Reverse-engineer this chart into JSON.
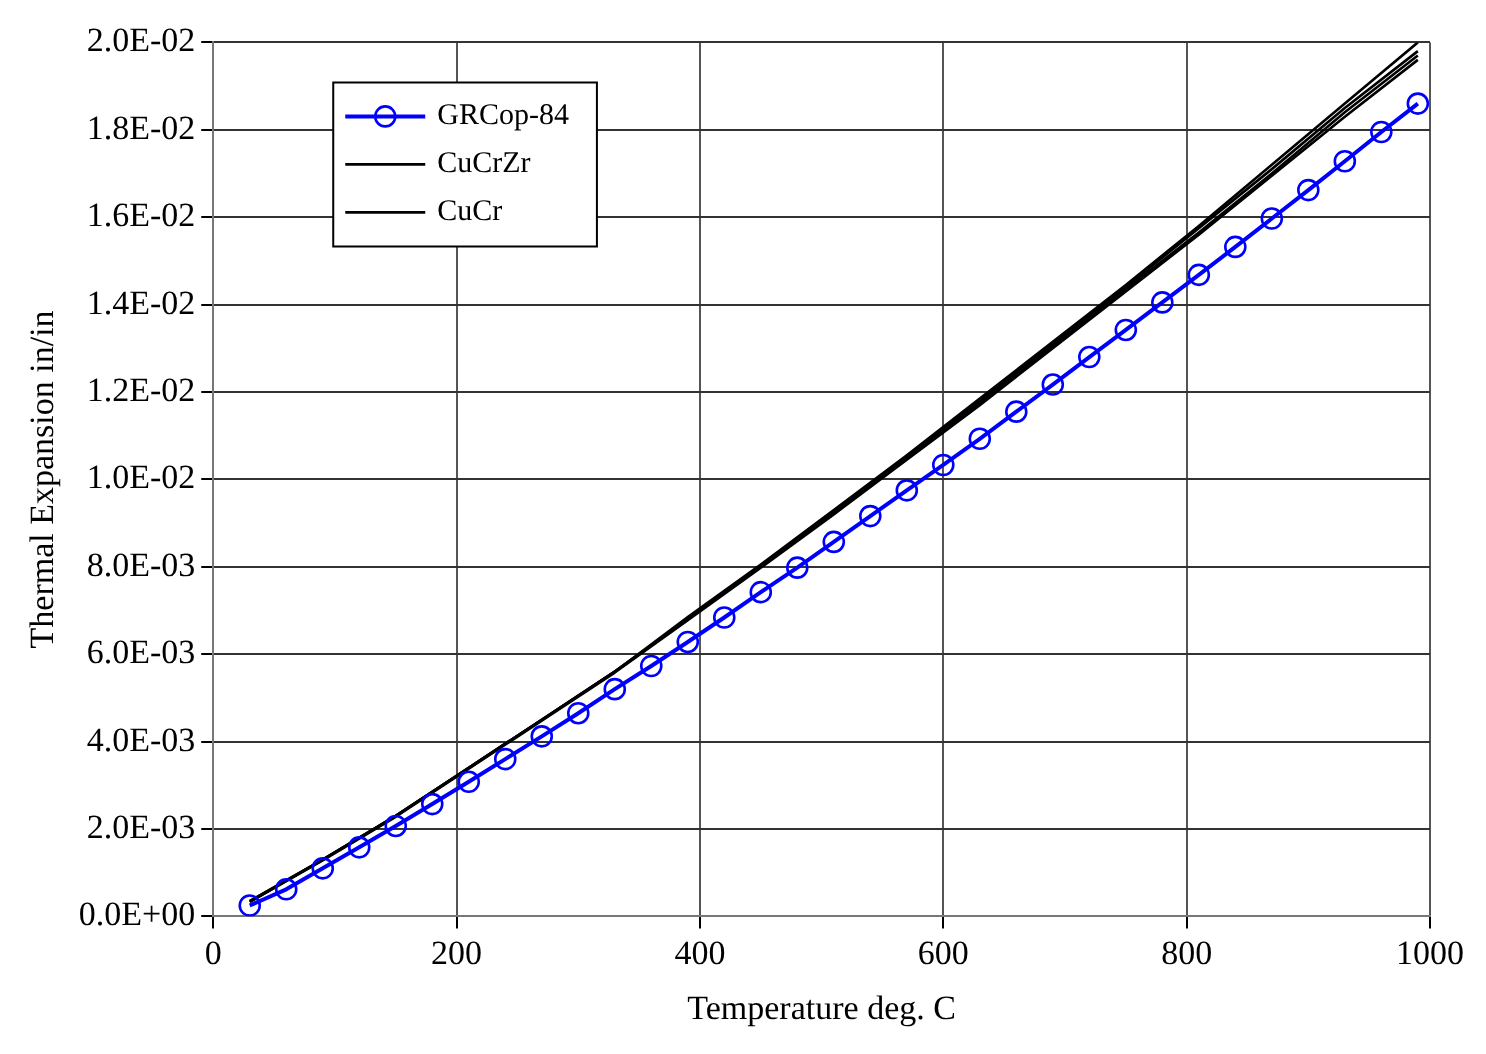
{
  "chart_data": {
    "type": "line",
    "xlabel": "Temperature deg. C",
    "ylabel": "Thermal Expansion in/in",
    "xlim": [
      0,
      1000
    ],
    "xticks": [
      0,
      200,
      400,
      600,
      800,
      1000
    ],
    "ylim": [
      0,
      0.02
    ],
    "yticks": [
      {
        "value": 0,
        "label": "0.0E+00"
      },
      {
        "value": 0.002,
        "label": "2.0E-03"
      },
      {
        "value": 0.004,
        "label": "4.0E-03"
      },
      {
        "value": 0.006,
        "label": "6.0E-03"
      },
      {
        "value": 0.008,
        "label": "8.0E-03"
      },
      {
        "value": 0.01,
        "label": "1.0E-02"
      },
      {
        "value": 0.012,
        "label": "1.2E-02"
      },
      {
        "value": 0.014,
        "label": "1.4E-02"
      },
      {
        "value": 0.016,
        "label": "1.6E-02"
      },
      {
        "value": 0.018,
        "label": "1.8E-02"
      },
      {
        "value": 0.02,
        "label": "2.0E-02"
      }
    ],
    "grid": true,
    "legend": "top left",
    "line_style": "solid",
    "series": [
      {
        "name": "GRCop-84",
        "color": "#0000ff",
        "marker": "circle",
        "x": [
          30,
          60,
          90,
          120,
          150,
          180,
          210,
          240,
          270,
          300,
          330,
          360,
          390,
          420,
          450,
          480,
          510,
          540,
          570,
          600,
          630,
          660,
          690,
          720,
          750,
          780,
          810,
          840,
          870,
          900,
          930,
          960,
          990
        ],
        "values": [
          0.00025,
          0.00062,
          0.0011,
          0.00158,
          0.00207,
          0.00257,
          0.00308,
          0.0036,
          0.00412,
          0.00465,
          0.0052,
          0.00573,
          0.00628,
          0.00684,
          0.00742,
          0.00798,
          0.00857,
          0.00916,
          0.00975,
          0.01033,
          0.01093,
          0.01155,
          0.01217,
          0.0128,
          0.01342,
          0.01405,
          0.01468,
          0.01532,
          0.01597,
          0.01662,
          0.01728,
          0.01795,
          0.0186
        ]
      },
      {
        "color": "#000000",
        "marker": "none",
        "x": [
          30,
          90,
          150,
          210,
          270,
          330,
          390,
          450,
          510,
          570,
          630,
          690,
          750,
          810,
          870,
          930,
          990
        ],
        "values": [
          0.00035,
          0.0013,
          0.0023,
          0.0034,
          0.0045,
          0.0056,
          0.00685,
          0.00805,
          0.0093,
          0.01055,
          0.01185,
          0.01315,
          0.01445,
          0.0158,
          0.0172,
          0.0186,
          0.02
        ]
      },
      {
        "color": "#000000",
        "marker": "none",
        "x": [
          30,
          90,
          150,
          210,
          270,
          330,
          390,
          450,
          510,
          570,
          630,
          690,
          750,
          810,
          870,
          930,
          990
        ],
        "values": [
          0.00035,
          0.0013,
          0.0023,
          0.0034,
          0.0045,
          0.0056,
          0.0068,
          0.008,
          0.00925,
          0.0105,
          0.0118,
          0.0131,
          0.0144,
          0.01575,
          0.0171,
          0.0185,
          0.0198
        ]
      },
      {
        "name": "CuCrZr",
        "color": "#000000",
        "marker": "none",
        "x": [
          30,
          90,
          150,
          210,
          270,
          330,
          390,
          450,
          510,
          570,
          630,
          690,
          750,
          810,
          870,
          930,
          990
        ],
        "values": [
          0.00033,
          0.0013,
          0.0023,
          0.0034,
          0.0045,
          0.0056,
          0.0068,
          0.008,
          0.00925,
          0.0105,
          0.01175,
          0.01305,
          0.01435,
          0.01565,
          0.017,
          0.0184,
          0.0197
        ]
      },
      {
        "name": "CuCr",
        "color": "#000000",
        "marker": "none",
        "x": [
          30,
          90,
          150,
          210,
          270,
          330,
          390,
          450,
          510,
          570,
          630,
          690,
          750,
          810,
          870,
          930,
          990
        ],
        "values": [
          0.00033,
          0.00128,
          0.00228,
          0.00338,
          0.00448,
          0.00558,
          0.00678,
          0.00798,
          0.0092,
          0.01045,
          0.0117,
          0.013,
          0.0143,
          0.0156,
          0.01695,
          0.0183,
          0.0196
        ]
      }
    ]
  }
}
